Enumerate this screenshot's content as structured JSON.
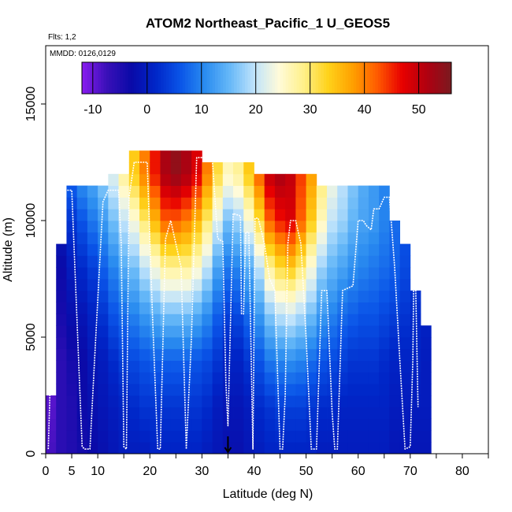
{
  "chart_data": {
    "type": "heatmap",
    "title": "ATOM2 Northeast_Pacific_1 U_GEOS5",
    "annotations": [
      "Flts: 1,2",
      "MMDD: 0126,0129"
    ],
    "xlabel": "Latitude (deg N)",
    "ylabel": "Altitude (m)",
    "xlim": [
      0,
      85
    ],
    "ylim": [
      0,
      17500
    ],
    "x_ticks": [
      0,
      5,
      10,
      20,
      30,
      40,
      50,
      60,
      70,
      80
    ],
    "x_tick_labels": [
      "0",
      "5",
      "10",
      "20",
      "30",
      "40",
      "50",
      "60",
      "70",
      "80"
    ],
    "y_ticks": [
      0,
      5000,
      10000,
      15000
    ],
    "y_tick_labels": [
      "0",
      "5000",
      "10000",
      "15000"
    ],
    "colorbar": {
      "range": [
        -12,
        56
      ],
      "ticks": [
        -10,
        0,
        10,
        20,
        30,
        40,
        50
      ],
      "tick_labels": [
        "-10",
        "0",
        "10",
        "20",
        "30",
        "40",
        "50"
      ],
      "colors": [
        "#8a1cf0",
        "#3a10b8",
        "#0a0aa8",
        "#0026c8",
        "#0a55e8",
        "#2a8cf0",
        "#66b8f8",
        "#bfe3fb",
        "#fffbd9",
        "#fff08a",
        "#ffd21a",
        "#ffa000",
        "#ff5a00",
        "#e80000",
        "#b00010",
        "#7a1a20"
      ]
    },
    "field": {
      "lat_centers": [
        1,
        3,
        5,
        7,
        9,
        11,
        13,
        15,
        17,
        19,
        21,
        23,
        25,
        27,
        29,
        31,
        33,
        35,
        37,
        39,
        41,
        43,
        45,
        47,
        49,
        51,
        53,
        55,
        57,
        59,
        61,
        63,
        65,
        67,
        69,
        71,
        73
      ],
      "alt_levels_m": [
        0,
        500,
        1000,
        1500,
        2000,
        2500,
        3000,
        3500,
        4000,
        4500,
        5000,
        5500,
        6000,
        6500,
        7000,
        7500,
        8000,
        8500,
        9000,
        9500,
        10000,
        10500,
        11000,
        11500,
        12000,
        12500,
        13000
      ],
      "top_alt_m": [
        2500,
        9000,
        11500,
        11500,
        11500,
        11500,
        12000,
        12000,
        13000,
        13000,
        13000,
        13000,
        13000,
        13000,
        13000,
        12500,
        12500,
        12500,
        12500,
        12500,
        12000,
        12000,
        12000,
        12000,
        12000,
        12000,
        11500,
        11500,
        11500,
        11500,
        11500,
        11500,
        11500,
        10000,
        9000,
        7000,
        5500
      ],
      "u_wind_ms": [
        [
          -8,
          -9,
          -10,
          -10,
          -10,
          -10,
          -8
        ],
        [
          -6,
          -6,
          -6,
          -4,
          -3,
          0,
          3
        ],
        [
          -5,
          -5,
          -4,
          -2,
          0,
          3,
          8
        ],
        [
          -4,
          -3,
          -3,
          -1,
          2,
          6,
          12
        ],
        [
          -3,
          -2,
          -1,
          1,
          4,
          9,
          14
        ],
        [
          -2,
          -1,
          0,
          3,
          7,
          12,
          18
        ],
        [
          -1,
          0,
          2,
          6,
          10,
          16,
          22
        ],
        [
          0,
          1,
          4,
          8,
          14,
          20,
          28
        ],
        [
          0,
          2,
          5,
          10,
          16,
          24,
          34
        ],
        [
          0,
          3,
          6,
          12,
          20,
          30,
          40
        ],
        [
          1,
          3,
          7,
          14,
          24,
          36,
          46
        ],
        [
          1,
          3,
          7,
          16,
          28,
          42,
          52
        ],
        [
          1,
          3,
          7,
          16,
          28,
          42,
          54
        ],
        [
          1,
          3,
          7,
          16,
          28,
          40,
          52
        ],
        [
          1,
          3,
          6,
          14,
          25,
          36,
          48
        ],
        [
          0,
          2,
          5,
          11,
          20,
          30,
          40
        ],
        [
          -1,
          0,
          3,
          7,
          13,
          22,
          32
        ],
        [
          -2,
          -1,
          1,
          4,
          9,
          16,
          26
        ],
        [
          -2,
          -1,
          1,
          5,
          10,
          18,
          28
        ],
        [
          -1,
          0,
          3,
          8,
          14,
          24,
          34
        ],
        [
          0,
          2,
          6,
          12,
          20,
          32,
          42
        ],
        [
          1,
          3,
          9,
          17,
          28,
          42,
          50
        ],
        [
          1,
          4,
          10,
          20,
          32,
          46,
          52
        ],
        [
          1,
          4,
          11,
          21,
          34,
          48,
          50
        ],
        [
          1,
          4,
          10,
          19,
          30,
          42,
          44
        ],
        [
          1,
          3,
          8,
          16,
          24,
          34,
          38
        ],
        [
          0,
          2,
          6,
          12,
          18,
          26,
          30
        ],
        [
          0,
          2,
          5,
          10,
          15,
          20,
          24
        ],
        [
          0,
          1,
          4,
          8,
          13,
          18,
          20
        ],
        [
          0,
          1,
          3,
          7,
          11,
          15,
          17
        ],
        [
          0,
          1,
          3,
          6,
          10,
          13,
          14
        ],
        [
          0,
          1,
          3,
          6,
          9,
          12,
          12
        ],
        [
          0,
          1,
          2,
          5,
          8,
          10,
          10
        ],
        [
          -1,
          0,
          1,
          4,
          7,
          8,
          8
        ],
        [
          -1,
          0,
          1,
          3,
          5,
          6,
          6
        ],
        [
          -1,
          0,
          1,
          2,
          4,
          4,
          4
        ],
        [
          -1,
          0,
          0,
          1,
          3,
          3,
          3
        ]
      ]
    },
    "flight_track": {
      "lat": [
        0.5,
        1,
        2,
        3.5,
        5,
        6.5,
        7,
        7.5,
        8,
        8.5,
        9.5,
        11,
        12,
        14,
        14.5,
        15,
        15.5,
        16,
        17,
        19.5,
        20.5,
        21.5,
        22,
        23,
        24,
        26,
        27,
        28,
        29,
        30,
        32,
        33,
        33.2,
        34,
        34.6,
        35,
        36,
        37.4,
        37.6,
        38,
        38.4,
        39,
        39.8,
        40.2,
        40.8,
        42,
        43,
        44,
        45,
        45.5,
        46,
        46.5,
        47,
        48,
        49,
        50,
        51,
        52,
        53,
        54,
        55,
        55.5,
        56,
        57,
        58,
        59,
        60,
        61,
        61.5,
        62.5,
        63,
        64,
        65,
        65.5,
        66,
        67,
        68,
        69,
        70,
        70.5,
        70.8,
        71.5
      ],
      "alt_m": [
        200,
        4000,
        10800,
        11300,
        11300,
        3000,
        300,
        200,
        200,
        200,
        4500,
        10800,
        11300,
        11300,
        9000,
        300,
        200,
        11000,
        12500,
        12500,
        6000,
        200,
        200,
        9200,
        10000,
        8000,
        200,
        5000,
        12700,
        12700,
        12600,
        9300,
        9200,
        9100,
        3000,
        1200,
        10300,
        10200,
        6000,
        6000,
        9500,
        9500,
        200,
        10100,
        10100,
        9000,
        7500,
        7000,
        200,
        200,
        2500,
        9000,
        10000,
        10000,
        9000,
        5000,
        200,
        200,
        7000,
        7000,
        1800,
        200,
        200,
        7000,
        7100,
        7200,
        10000,
        10000,
        9800,
        9600,
        10500,
        10500,
        11000,
        11000,
        11000,
        8000,
        4000,
        200,
        300,
        4000,
        10000,
        2000
      ]
    },
    "marker": {
      "lat": 35,
      "direction": "down"
    }
  }
}
